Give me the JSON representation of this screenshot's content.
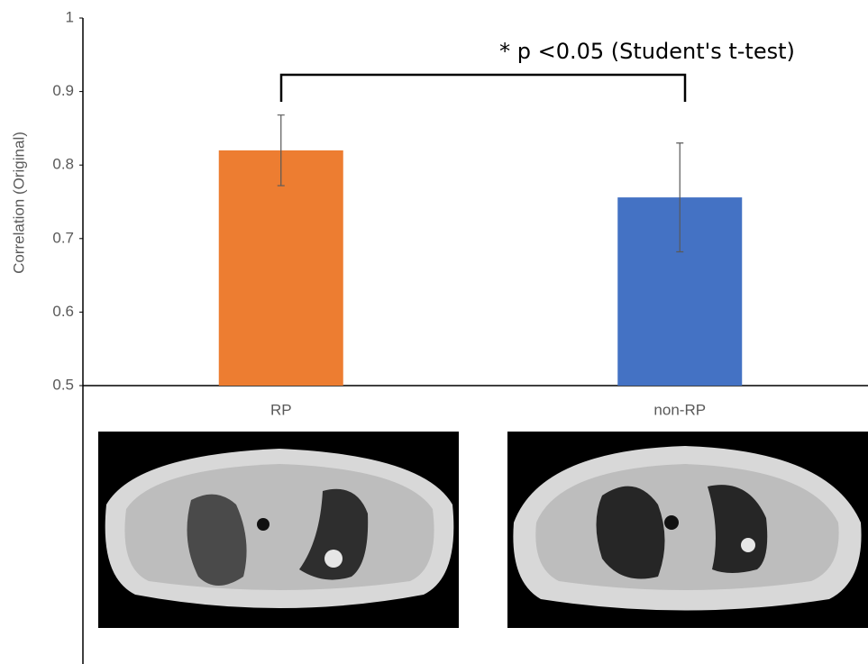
{
  "chart_data": {
    "type": "bar",
    "y_label": "Correlation (Original)",
    "annotation": "* p <0.05 (Student's t-test)",
    "categories": [
      "RP",
      "non-RP"
    ],
    "values": [
      0.82,
      0.756
    ],
    "errors": [
      0.048,
      0.074
    ],
    "colors": [
      "#ed7d31",
      "#4472c4"
    ],
    "ylim": [
      0.5,
      1
    ],
    "yticks": [
      0.5,
      0.6,
      0.7,
      0.8,
      0.9,
      1
    ],
    "grid": false
  }
}
